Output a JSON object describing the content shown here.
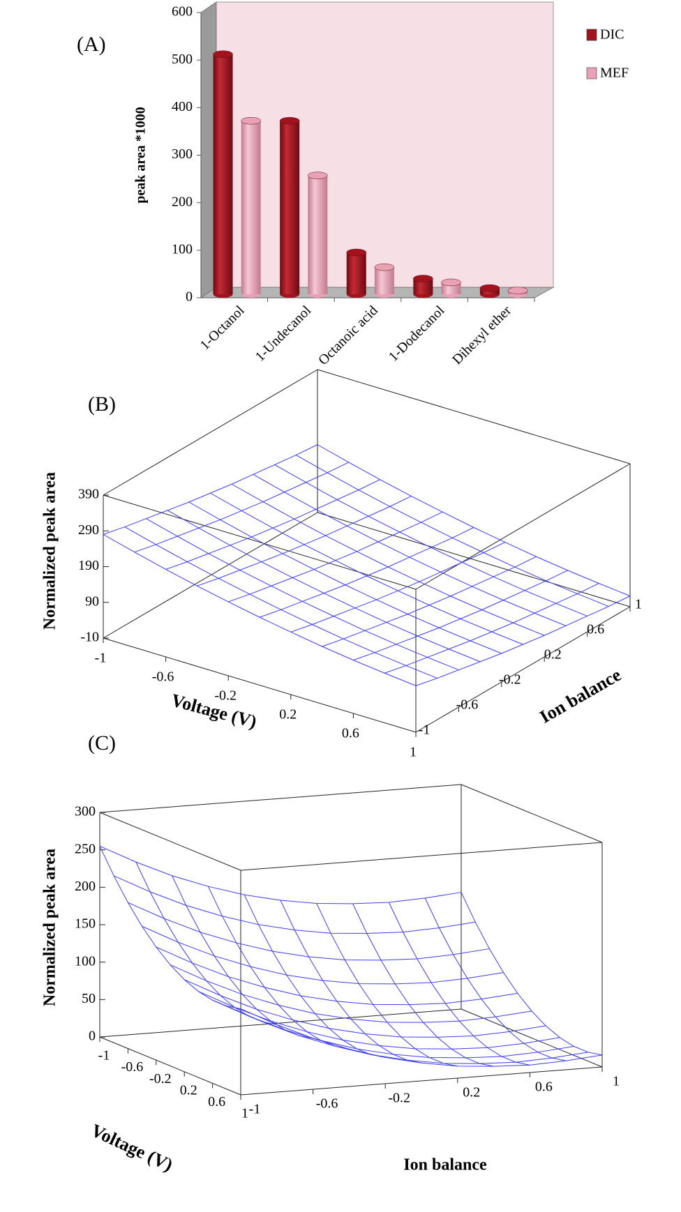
{
  "chart_data": [
    {
      "type": "bar",
      "panel_label": "(A)",
      "ylabel": "peak area *1000",
      "categories": [
        "1-Octanol",
        "1-Undecanol",
        "Octanoic acid",
        "1-Dodecanol",
        "Dihexyl ether"
      ],
      "series": [
        {
          "name": "DIC",
          "color": "#a3131d",
          "values": [
            505,
            365,
            88,
            33,
            13
          ]
        },
        {
          "name": "MEF",
          "color": "#e8a1b5",
          "values": [
            365,
            250,
            57,
            25,
            8
          ]
        }
      ],
      "ylim": [
        0,
        600
      ],
      "yticks": [
        0,
        100,
        200,
        300,
        400,
        500,
        600
      ]
    },
    {
      "type": "surface",
      "panel_label": "(B)",
      "xlabel": "Voltage (V)",
      "ylabel": "Ion balance",
      "zlabel": "Normalized peak area",
      "color": "#3c3cf0",
      "xlim": [
        -1,
        1
      ],
      "ylim": [
        -1,
        1
      ],
      "zlim": [
        -10,
        390
      ],
      "xticks": [
        -1,
        -0.6,
        -0.2,
        0.2,
        0.6,
        1
      ],
      "yticks": [
        -1,
        -0.6,
        -0.2,
        0.2,
        0.6,
        1
      ],
      "zticks": [
        -10,
        90,
        190,
        290,
        390
      ],
      "x": [
        -1,
        -0.8,
        -0.6,
        -0.4,
        -0.2,
        0,
        0.2,
        0.4,
        0.6,
        0.8,
        1
      ],
      "y": [
        -1,
        -0.8,
        -0.6,
        -0.4,
        -0.2,
        0,
        0.2,
        0.4,
        0.6,
        0.8,
        1
      ],
      "z": [
        [
          280,
          266,
          254,
          242,
          230,
          220,
          210,
          202,
          194,
          186,
          180
        ],
        [
          257,
          243,
          231,
          219,
          207,
          197,
          187,
          179,
          171,
          163,
          157
        ],
        [
          235,
          221,
          209,
          197,
          185,
          175,
          165,
          157,
          149,
          141,
          135
        ],
        [
          215,
          201,
          189,
          177,
          165,
          155,
          145,
          137,
          129,
          121,
          115
        ],
        [
          197,
          183,
          171,
          159,
          147,
          137,
          127,
          119,
          111,
          103,
          97
        ],
        [
          180,
          166,
          154,
          142,
          130,
          120,
          110,
          102,
          94,
          86,
          80
        ],
        [
          165,
          151,
          139,
          127,
          115,
          105,
          95,
          87,
          79,
          71,
          65
        ],
        [
          151,
          137,
          125,
          113,
          101,
          91,
          81,
          73,
          65,
          57,
          51
        ],
        [
          139,
          125,
          113,
          101,
          89,
          79,
          69,
          61,
          53,
          45,
          39
        ],
        [
          129,
          115,
          103,
          91,
          79,
          69,
          59,
          51,
          43,
          35,
          29
        ],
        [
          120,
          106,
          94,
          82,
          70,
          60,
          50,
          42,
          34,
          26,
          20
        ]
      ]
    },
    {
      "type": "surface",
      "panel_label": "(C)",
      "xlabel": "Voltage (V)",
      "ylabel": "Ion balance",
      "zlabel": "Normalized peak area",
      "color": "#3c3cf0",
      "xlim": [
        -1,
        1
      ],
      "ylim": [
        -1,
        1
      ],
      "zlim": [
        0,
        300
      ],
      "xticks": [
        -1,
        -0.6,
        -0.2,
        0.2,
        0.6,
        1
      ],
      "yticks": [
        -1,
        -0.6,
        -0.2,
        0.2,
        0.6,
        1
      ],
      "zticks": [
        0,
        50,
        100,
        150,
        200,
        250,
        300
      ],
      "x": [
        -1,
        -0.8,
        -0.6,
        -0.4,
        -0.2,
        0,
        0.2,
        0.4,
        0.6,
        0.8,
        1
      ],
      "y": [
        -1,
        -0.8,
        -0.6,
        -0.4,
        -0.2,
        0,
        0.2,
        0.4,
        0.6,
        0.8,
        1
      ],
      "z": [
        [
          255,
          230,
          208,
          190,
          175,
          164,
          156,
          152,
          150,
          152,
          156
        ],
        [
          223,
          198,
          176,
          158,
          143,
          132,
          124,
          120,
          118,
          120,
          124
        ],
        [
          195,
          170,
          148,
          130,
          115,
          104,
          96,
          92,
          90,
          92,
          96
        ],
        [
          171,
          146,
          124,
          106,
          91,
          80,
          72,
          68,
          66,
          68,
          72
        ],
        [
          151,
          126,
          104,
          86,
          71,
          60,
          52,
          48,
          46,
          48,
          52
        ],
        [
          135,
          110,
          88,
          70,
          55,
          44,
          36,
          32,
          30,
          32,
          36
        ],
        [
          123,
          98,
          76,
          58,
          43,
          32,
          24,
          20,
          18,
          20,
          24
        ],
        [
          115,
          90,
          68,
          50,
          35,
          24,
          16,
          12,
          10,
          12,
          16
        ],
        [
          111,
          86,
          64,
          46,
          31,
          20,
          12,
          8,
          6,
          8,
          12
        ],
        [
          111,
          86,
          64,
          46,
          31,
          20,
          12,
          8,
          6,
          8,
          12
        ],
        [
          115,
          90,
          68,
          50,
          35,
          24,
          16,
          12,
          10,
          12,
          16
        ]
      ]
    }
  ]
}
